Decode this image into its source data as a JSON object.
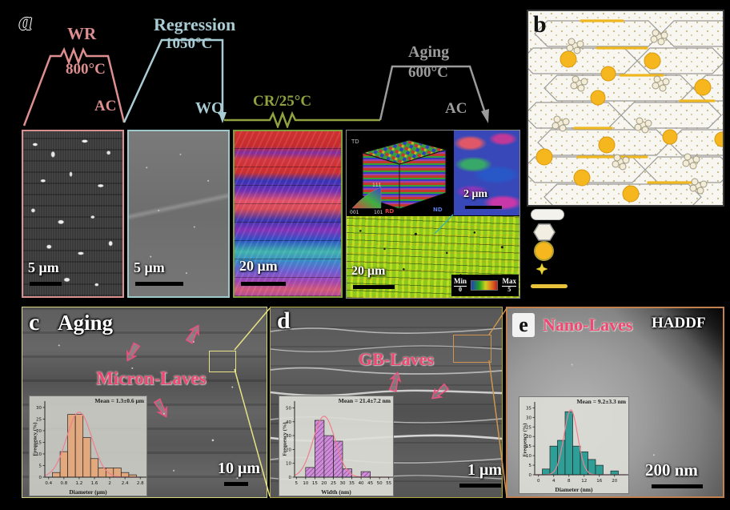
{
  "colors": {
    "wr_pink": "#dd8f8f",
    "regression_blue": "#a9ccd4",
    "cr_green": "#8fa23f",
    "aging_gray": "#9b9b9b",
    "laves_text_pink": "#ef4673",
    "zoom_box_c_yellow": "#e6e285",
    "zoom_box_d_orange": "#cf9550",
    "particle_yellow": "#f5b61e"
  },
  "panel_a": {
    "label": "a",
    "profile": {
      "wr_label": "WR",
      "wr_temp": "800°C",
      "wr_cool": "AC",
      "regression_label": "Regression",
      "regression_temp": "1050°C",
      "regression_quench": "WQ",
      "cr_label": "CR/25°C",
      "aging_label": "Aging",
      "aging_temp": "600°C",
      "aging_cool": "AC"
    },
    "micrograph_1": {
      "scale_bar": "5 μm"
    },
    "micrograph_2": {
      "scale_bar": "5 μm"
    },
    "micrograph_3": {
      "scale_bar": "20 μm"
    },
    "composite": {
      "ipf_scale_bar": "2 μm",
      "kam_scale_bar": "20 μm",
      "triangle": {
        "v111": "111",
        "v001": "001",
        "v101": "101"
      },
      "axes": {
        "rd": "RD",
        "td": "TD",
        "nd": "ND"
      },
      "colorbar": {
        "min_label": "Min",
        "min_value": "0",
        "max_label": "Max",
        "max_value": "5"
      }
    }
  },
  "panel_b": {
    "label": "b"
  },
  "panel_c": {
    "label": "c",
    "title": "Aging",
    "annotation": "Micron-Laves",
    "scale_bar": "10 μm",
    "inset": {
      "title": "Mean = 1.3±0.6 μm",
      "xlabel": "Diameter (μm)",
      "ylabel": "Frequency (%)"
    }
  },
  "panel_d": {
    "label": "d",
    "annotation": "GB-Laves",
    "scale_bar": "1 μm",
    "inset": {
      "title": "Mean = 21.4±7.2 nm",
      "xlabel": "Width (nm)",
      "ylabel": "Frequency (%)"
    }
  },
  "panel_e": {
    "label": "e",
    "annotation": "Nano-Laves",
    "mode_label": "HADDF",
    "scale_bar": "200 nm",
    "inset": {
      "title": "Mean = 9.2±3.3 nm",
      "xlabel": "Diameter (nm)",
      "ylabel": "Frequency (%)"
    }
  },
  "chart_data": [
    {
      "id": "hist-c",
      "type": "bar",
      "title": "Mean = 1.3±0.6 μm",
      "xlabel": "Diameter (μm)",
      "ylabel": "Frequency (%)",
      "bin_width": 0.2,
      "centers": [
        0.6,
        0.8,
        1.0,
        1.2,
        1.4,
        1.6,
        1.8,
        2.0,
        2.2,
        2.4,
        2.6
      ],
      "values": [
        2,
        11,
        27,
        27,
        17,
        8,
        4,
        4,
        4,
        2,
        1
      ],
      "xticks": [
        0.4,
        0.8,
        1.2,
        1.6,
        2.0,
        2.4,
        2.8
      ],
      "yticks": [
        0,
        5,
        10,
        15,
        20,
        25,
        30
      ],
      "xlim": [
        0.3,
        2.9
      ],
      "ylim": [
        0,
        31
      ],
      "fit": {
        "mean": 1.2,
        "sd": 0.33,
        "peak": 28
      },
      "bar_color": "#e2a87e",
      "curve_color": "#ef7f8f",
      "hatch": false
    },
    {
      "id": "hist-d",
      "type": "bar",
      "title": "Mean = 21.4±7.2 nm",
      "xlabel": "Width (nm)",
      "ylabel": "Frequency (%)",
      "bin_width": 5,
      "centers": [
        12.5,
        17.5,
        22.5,
        27.5,
        32.5,
        42.5
      ],
      "values": [
        7,
        41,
        30,
        26,
        6,
        4
      ],
      "xticks": [
        5,
        10,
        15,
        20,
        25,
        30,
        35,
        40,
        45,
        50,
        55
      ],
      "yticks": [
        0,
        10,
        20,
        30,
        40,
        50
      ],
      "xlim": [
        4,
        56
      ],
      "ylim": [
        0,
        52
      ],
      "fit": {
        "mean": 20,
        "sd": 6,
        "peak": 44
      },
      "bar_color": "#cf8fd8",
      "curve_color": "#ef7f8f",
      "hatch": true
    },
    {
      "id": "hist-e",
      "type": "bar",
      "title": "Mean = 9.2±3.3 nm",
      "xlabel": "Diameter (nm)",
      "ylabel": "Frequency (%)",
      "bin_width": 2,
      "centers": [
        2,
        4,
        6,
        8,
        10,
        12,
        14,
        16,
        20
      ],
      "values": [
        3,
        15,
        18,
        33,
        15,
        12,
        8,
        5,
        2
      ],
      "xticks": [
        0,
        4,
        8,
        12,
        16,
        20
      ],
      "yticks": [
        0,
        5,
        10,
        15,
        20,
        25,
        30,
        35
      ],
      "xlim": [
        -1,
        23
      ],
      "ylim": [
        0,
        36
      ],
      "fit": {
        "mean": 8.5,
        "sd": 1.8,
        "peak": 34
      },
      "bar_color": "#2f9e96",
      "curve_color": "#ef7f8f",
      "hatch": false
    }
  ]
}
